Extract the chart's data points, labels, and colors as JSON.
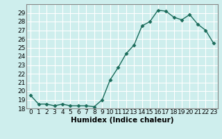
{
  "x": [
    0,
    1,
    2,
    3,
    4,
    5,
    6,
    7,
    8,
    9,
    10,
    11,
    12,
    13,
    14,
    15,
    16,
    17,
    18,
    19,
    20,
    21,
    22,
    23
  ],
  "y": [
    19.5,
    18.5,
    18.5,
    18.3,
    18.5,
    18.3,
    18.3,
    18.3,
    18.2,
    19.0,
    21.3,
    22.7,
    24.3,
    25.3,
    27.5,
    28.0,
    29.3,
    29.2,
    28.5,
    28.2,
    28.8,
    27.7,
    27.0,
    25.5
  ],
  "line_color": "#1a6b5a",
  "marker": "D",
  "marker_size": 2.5,
  "bg_color": "#ceeeed",
  "grid_color": "#ffffff",
  "xlabel": "Humidex (Indice chaleur)",
  "ylim": [
    18,
    30
  ],
  "xlim": [
    -0.5,
    23.5
  ],
  "yticks": [
    18,
    19,
    20,
    21,
    22,
    23,
    24,
    25,
    26,
    27,
    28,
    29
  ],
  "xticks": [
    0,
    1,
    2,
    3,
    4,
    5,
    6,
    7,
    8,
    9,
    10,
    11,
    12,
    13,
    14,
    15,
    16,
    17,
    18,
    19,
    20,
    21,
    22,
    23
  ],
  "xtick_labels": [
    "0",
    "1",
    "2",
    "3",
    "4",
    "5",
    "6",
    "7",
    "8",
    "9",
    "10",
    "11",
    "12",
    "13",
    "14",
    "15",
    "16",
    "17",
    "18",
    "19",
    "20",
    "21",
    "22",
    "23"
  ],
  "label_fontsize": 7.5,
  "tick_fontsize": 6.5,
  "spine_color": "#888888",
  "line_width": 1.0
}
